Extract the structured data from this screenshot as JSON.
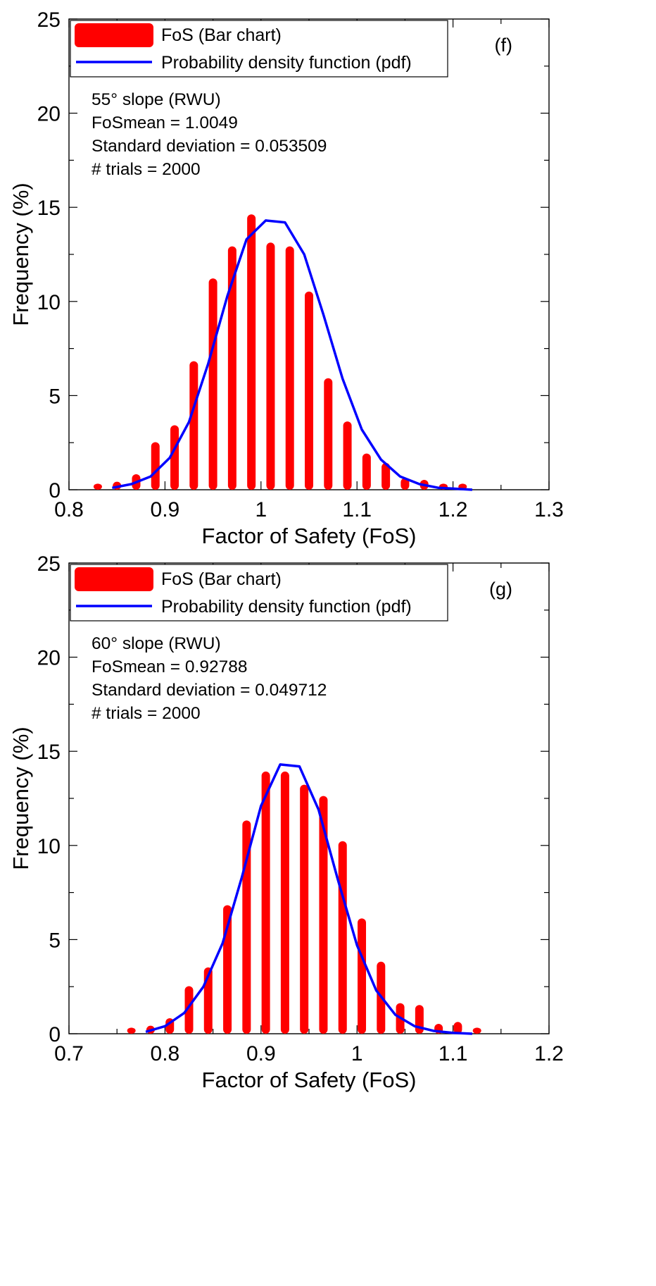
{
  "chart_data": [
    {
      "type": "bar",
      "panel_label": "(f)",
      "xlabel": "Factor of Safety (FoS)",
      "ylabel": "Frequency (%)",
      "xlim": [
        0.8,
        1.3
      ],
      "ylim": [
        0,
        25
      ],
      "x_ticks": [
        0.8,
        0.9,
        1,
        1.1,
        1.2,
        1.3
      ],
      "x_tick_labels": [
        "0.8",
        "0.9",
        "1",
        "1.1",
        "1.2",
        "1.3"
      ],
      "y_ticks": [
        0,
        5,
        10,
        15,
        20,
        25
      ],
      "y_tick_labels": [
        "0",
        "5",
        "10",
        "15",
        "20",
        "25"
      ],
      "legend_position": "top-left",
      "legend": {
        "bar": "FoS (Bar chart)",
        "line": "Probability density function (pdf)"
      },
      "stats": {
        "slope": "55° slope (RWU)",
        "mean_prefix": "FoS",
        "mean_sub": "mean",
        "mean_value": " = 1.0049",
        "std": "Standard deviation = 0.053509",
        "trials": "# trials = 2000"
      },
      "colors": {
        "bar": "#ff0000",
        "line": "#0000ff"
      },
      "bars": {
        "x": [
          0.83,
          0.85,
          0.87,
          0.89,
          0.91,
          0.93,
          0.95,
          0.97,
          0.99,
          1.01,
          1.03,
          1.05,
          1.07,
          1.09,
          1.11,
          1.13,
          1.15,
          1.17,
          1.19,
          1.21
        ],
        "values": [
          0.1,
          0.2,
          0.6,
          2.3,
          3.2,
          6.6,
          11.0,
          12.7,
          14.4,
          12.9,
          12.7,
          10.3,
          5.7,
          3.4,
          1.7,
          1.2,
          0.4,
          0.3,
          0.1,
          0.1
        ]
      },
      "pdf": {
        "x": [
          0.845,
          0.865,
          0.885,
          0.905,
          0.925,
          0.945,
          0.965,
          0.985,
          1.005,
          1.025,
          1.045,
          1.065,
          1.085,
          1.105,
          1.125,
          1.145,
          1.165,
          1.185,
          1.205,
          1.22
        ],
        "values": [
          0.1,
          0.3,
          0.7,
          1.7,
          3.6,
          6.7,
          10.3,
          13.3,
          14.3,
          14.2,
          12.5,
          9.3,
          5.9,
          3.2,
          1.6,
          0.7,
          0.3,
          0.1,
          0.05,
          0.0
        ]
      }
    },
    {
      "type": "bar",
      "panel_label": "(g)",
      "xlabel": "Factor of Safety (FoS)",
      "ylabel": "Frequency (%)",
      "xlim": [
        0.7,
        1.2
      ],
      "ylim": [
        0,
        25
      ],
      "x_ticks": [
        0.7,
        0.8,
        0.9,
        1,
        1.1,
        1.2
      ],
      "x_tick_labels": [
        "0.7",
        "0.8",
        "0.9",
        "1",
        "1.1",
        "1.2"
      ],
      "y_ticks": [
        0,
        5,
        10,
        15,
        20,
        25
      ],
      "y_tick_labels": [
        "0",
        "5",
        "10",
        "15",
        "20",
        "25"
      ],
      "legend_position": "top-left",
      "legend": {
        "bar": "FoS (Bar chart)",
        "line": "Probability density function (pdf)"
      },
      "stats": {
        "slope": "60° slope (RWU)",
        "mean_prefix": "FoS",
        "mean_sub": "mean",
        "mean_value": " = 0.92788",
        "std": "Standard deviation = 0.049712",
        "trials": "# trials = 2000"
      },
      "colors": {
        "bar": "#ff0000",
        "line": "#0000ff"
      },
      "bars": {
        "x": [
          0.765,
          0.785,
          0.805,
          0.825,
          0.845,
          0.865,
          0.885,
          0.905,
          0.925,
          0.945,
          0.965,
          0.985,
          1.005,
          1.025,
          1.045,
          1.065,
          1.085,
          1.105,
          1.125
        ],
        "values": [
          0.1,
          0.2,
          0.6,
          2.3,
          3.3,
          6.6,
          11.1,
          13.7,
          13.7,
          13.0,
          12.4,
          10.0,
          5.9,
          3.6,
          1.4,
          1.3,
          0.3,
          0.4,
          0.1
        ]
      },
      "pdf": {
        "x": [
          0.78,
          0.8,
          0.82,
          0.84,
          0.86,
          0.88,
          0.9,
          0.92,
          0.94,
          0.96,
          0.98,
          1.0,
          1.02,
          1.04,
          1.06,
          1.08,
          1.1,
          1.12
        ],
        "values": [
          0.1,
          0.4,
          1.1,
          2.5,
          4.8,
          8.3,
          12.1,
          14.3,
          14.2,
          11.9,
          8.2,
          4.7,
          2.3,
          1.0,
          0.4,
          0.15,
          0.05,
          0.0
        ]
      }
    }
  ]
}
